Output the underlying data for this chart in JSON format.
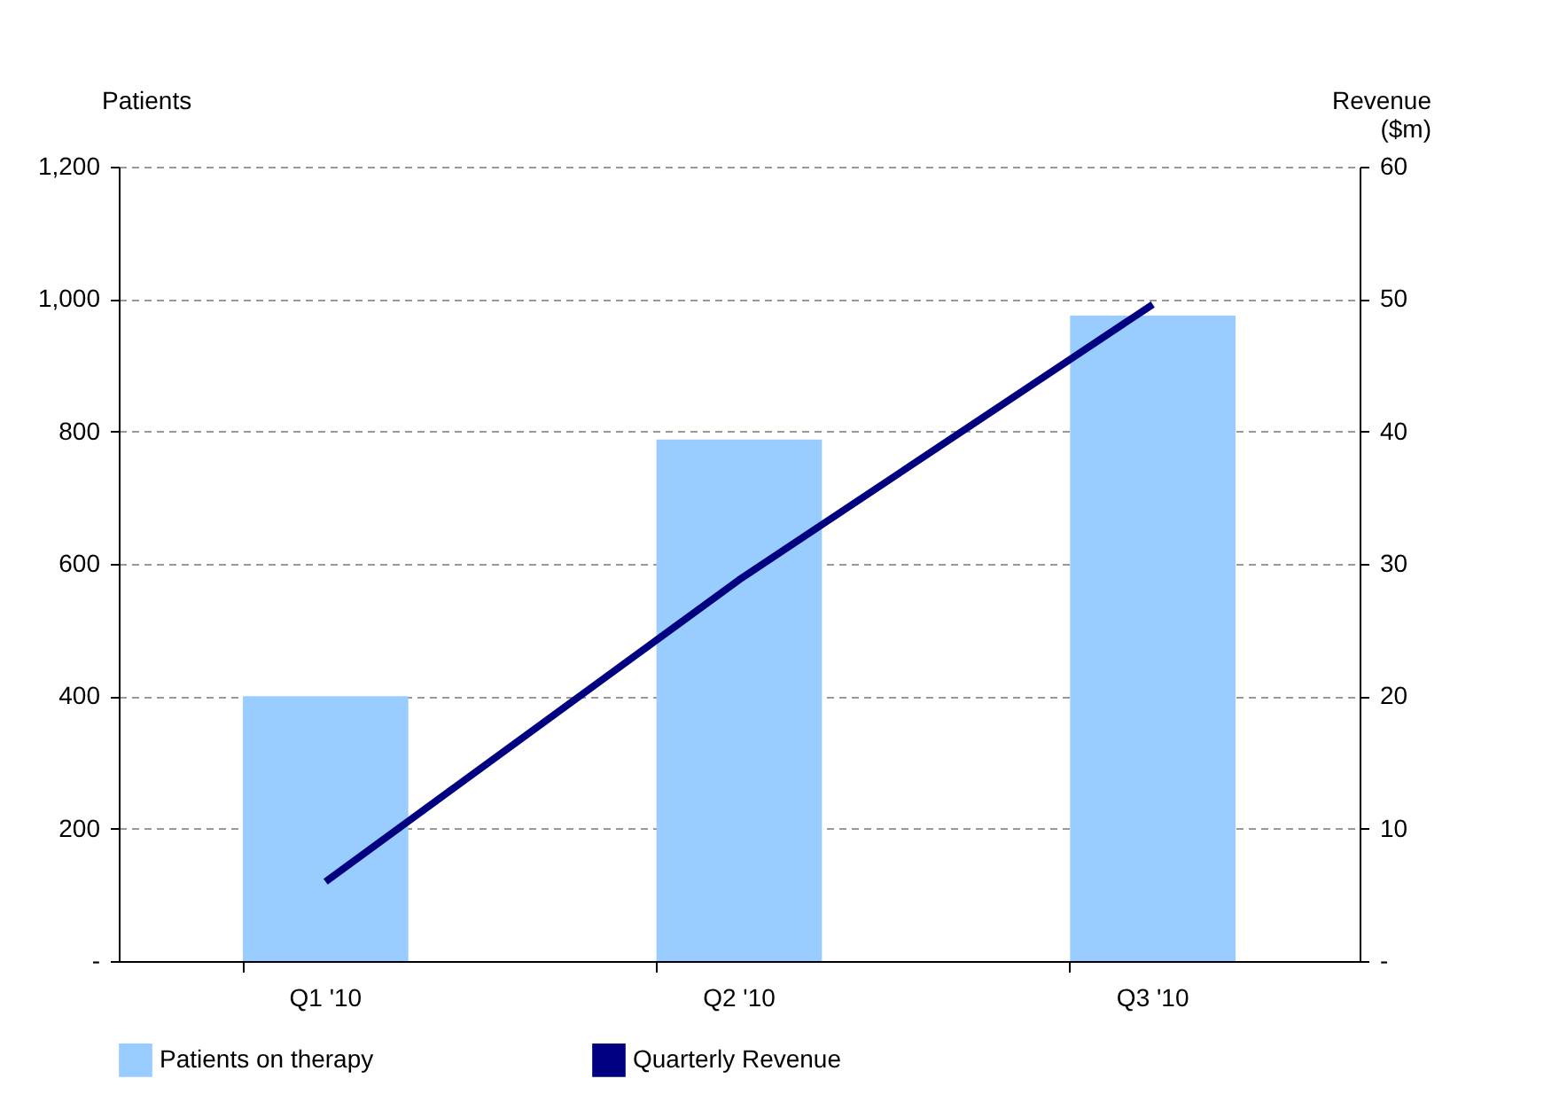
{
  "chart_data": {
    "type": "bar",
    "categories": [
      "Q1 '10",
      "Q2 '10",
      "Q3 '10"
    ],
    "series": [
      {
        "name": "Patients on therapy",
        "color": "#99ccff",
        "values": [
          400,
          788,
          975
        ]
      },
      {
        "name": "Quarterly Revenue",
        "type": "line",
        "color": "#000080",
        "axis": "y2",
        "values": [
          6.0,
          28.8,
          49.6
        ]
      }
    ],
    "ylabel": "Patients",
    "y2label": "Revenue ($m)",
    "ylim": [
      0,
      1200
    ],
    "yticks": [
      {
        "value": 0,
        "label": "-"
      },
      200,
      400,
      600,
      800,
      {
        "value": 1000,
        "label": "1,000"
      },
      {
        "value": 1200,
        "label": "1,200"
      }
    ],
    "y2lim": [
      0,
      60
    ],
    "y2ticks": [
      {
        "value": 0,
        "label": "-"
      },
      10,
      20,
      30,
      40,
      50,
      60
    ],
    "grid": "y",
    "legend": "bottom",
    "line_style": "solid",
    "marker": "none"
  }
}
